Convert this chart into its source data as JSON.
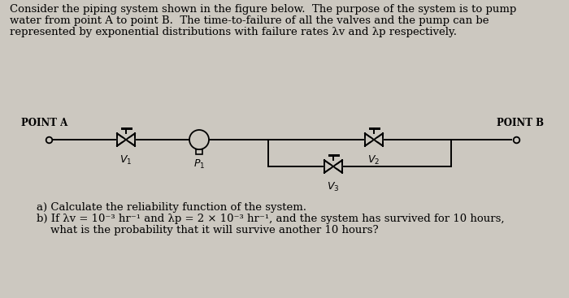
{
  "bg_color": "#ccc8c0",
  "font_size_body": 9.5,
  "font_size_label": 9,
  "title_line1": "Consider the piping system shown in the figure below.  The purpose of the system is to pump",
  "title_line2": "water from point A to point B.  The time-to-failure of all the valves and the pump can be",
  "title_line3": "represented by exponential distributions with failure rates λv and λp respectively.",
  "qa": "a) Calculate the reliability function of the system.",
  "qb1": "b) If λv = 10⁻³ hr⁻¹ and λp = 2 × 10⁻³ hr⁻¹, and the system has survived for 10 hours,",
  "qb2": "    what is the probability that it will survive another 10 hours?"
}
